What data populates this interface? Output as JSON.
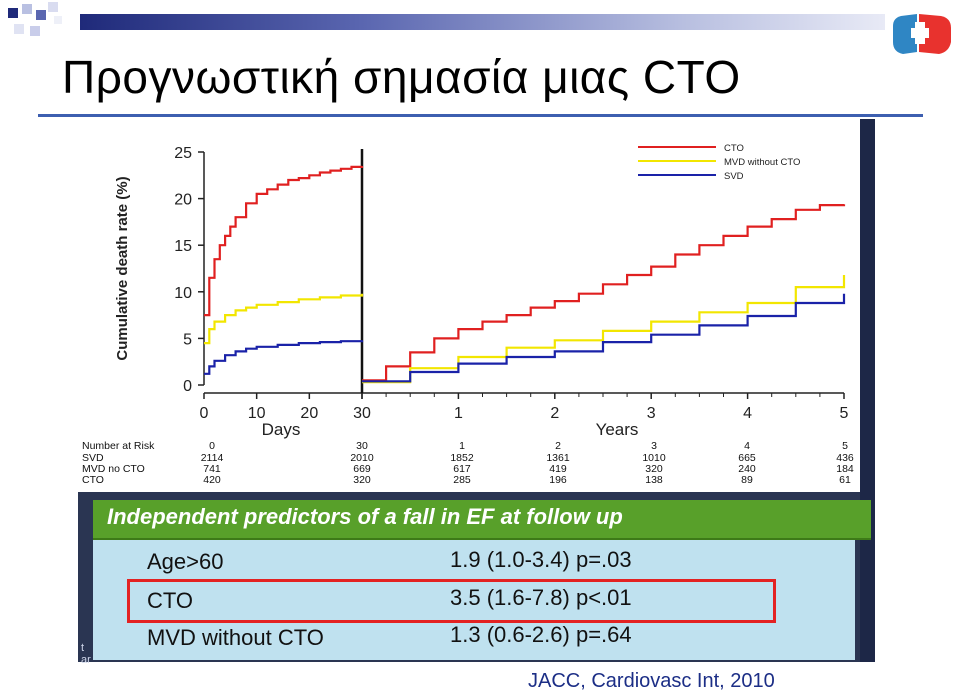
{
  "slide": {
    "title": "Προγνωστική σημασία μιας CTO",
    "citation": "JACC, Cardiovasc Int,   2010",
    "colors": {
      "title_rule": "#3d5fb0",
      "top_bar_dark": "#1f2a7a",
      "panel_header": "#58a02a",
      "panel_body": "#bfe1ef",
      "highlight": "#e32222",
      "cto": "#e02020",
      "mvd": "#f2e600",
      "svd": "#1a22a8"
    },
    "logo_icon": "cross-shield-icon"
  },
  "chart_data": {
    "type": "line",
    "ylabel": "Cumulative death rate (%)",
    "ylim": [
      0,
      25
    ],
    "yticks": [
      "0",
      "5",
      "10",
      "15",
      "20",
      "25"
    ],
    "panels": [
      {
        "xlabel": "Days",
        "xlim": [
          0,
          30
        ],
        "xticks": [
          "0",
          "10",
          "20",
          "30"
        ],
        "series": [
          {
            "name": "CTO",
            "color": "#e02020",
            "x": [
              0,
              1,
              2,
              3,
              4,
              5,
              6,
              8,
              10,
              12,
              14,
              16,
              18,
              20,
              22,
              24,
              26,
              28,
              30
            ],
            "y": [
              7.5,
              11.5,
              13.5,
              15,
              16,
              17,
              18,
              19.5,
              20.5,
              21,
              21.5,
              22,
              22.2,
              22.5,
              22.8,
              23,
              23.2,
              23.4,
              23.5
            ]
          },
          {
            "name": "MVD without CTO",
            "color": "#f2e600",
            "x": [
              0,
              1,
              2,
              4,
              6,
              8,
              10,
              14,
              18,
              22,
              26,
              30
            ],
            "y": [
              4.5,
              6,
              6.8,
              7.5,
              8,
              8.3,
              8.6,
              8.9,
              9.2,
              9.4,
              9.6,
              9.8
            ]
          },
          {
            "name": "SVD",
            "color": "#1a22a8",
            "x": [
              0,
              1,
              2,
              4,
              6,
              8,
              10,
              14,
              18,
              22,
              26,
              30
            ],
            "y": [
              1.2,
              2,
              2.6,
              3.2,
              3.6,
              3.9,
              4.1,
              4.3,
              4.5,
              4.6,
              4.7,
              4.8
            ]
          }
        ]
      },
      {
        "xlabel": "Years",
        "xlim": [
          0,
          5
        ],
        "xticks": [
          "30",
          "1",
          "2",
          "3",
          "4",
          "5"
        ],
        "series": [
          {
            "name": "CTO",
            "color": "#e02020",
            "x": [
              0,
              0.25,
              0.5,
              0.75,
              1,
              1.25,
              1.5,
              1.75,
              2,
              2.25,
              2.5,
              2.75,
              3,
              3.25,
              3.5,
              3.75,
              4,
              4.25,
              4.5,
              4.75,
              5
            ],
            "y": [
              0.5,
              2,
              3.5,
              5,
              6,
              6.8,
              7.5,
              8.3,
              9,
              9.8,
              10.8,
              11.8,
              12.7,
              14,
              15,
              16,
              17,
              17.8,
              18.8,
              19.3,
              19.4
            ]
          },
          {
            "name": "MVD without CTO",
            "color": "#f2e600",
            "x": [
              0,
              0.5,
              1,
              1.5,
              2,
              2.5,
              3,
              3.5,
              4,
              4.5,
              5
            ],
            "y": [
              0.3,
              1.8,
              3,
              4,
              4.8,
              5.8,
              6.8,
              7.8,
              8.8,
              10.5,
              11.8
            ]
          },
          {
            "name": "SVD",
            "color": "#1a22a8",
            "x": [
              0,
              0.5,
              1,
              1.5,
              2,
              2.5,
              3,
              3.5,
              4,
              4.5,
              5
            ],
            "y": [
              0.4,
              1.4,
              2.3,
              3,
              3.6,
              4.6,
              5.4,
              6.4,
              7.4,
              8.8,
              9.8
            ]
          }
        ]
      }
    ],
    "legend": {
      "placement": "top-right",
      "entries": [
        "CTO",
        "MVD without CTO",
        "SVD"
      ]
    },
    "risk_table": {
      "header": [
        "Number at Risk",
        "0",
        "30",
        "1",
        "2",
        "3",
        "4",
        "5"
      ],
      "rows": [
        [
          "SVD",
          "2114",
          "2010",
          "1852",
          "1361",
          "1010",
          "665",
          "436"
        ],
        [
          "MVD no CTO",
          "741",
          "669",
          "617",
          "419",
          "320",
          "240",
          "184"
        ],
        [
          "CTO",
          "420",
          "320",
          "285",
          "196",
          "138",
          "89",
          "61"
        ]
      ]
    }
  },
  "predictors": {
    "header": "Independent predictors of a fall in EF at follow up",
    "rows": [
      {
        "label": "Age>60",
        "value": "1.9 (1.0-3.4) p=.03"
      },
      {
        "label": "CTO",
        "value": "3.5 (1.6-7.8) p<.01"
      },
      {
        "label": "MVD  without CTO",
        "value": "1.3 (0.6-2.6) p=.64"
      }
    ],
    "left_tab_text": "t ar"
  }
}
